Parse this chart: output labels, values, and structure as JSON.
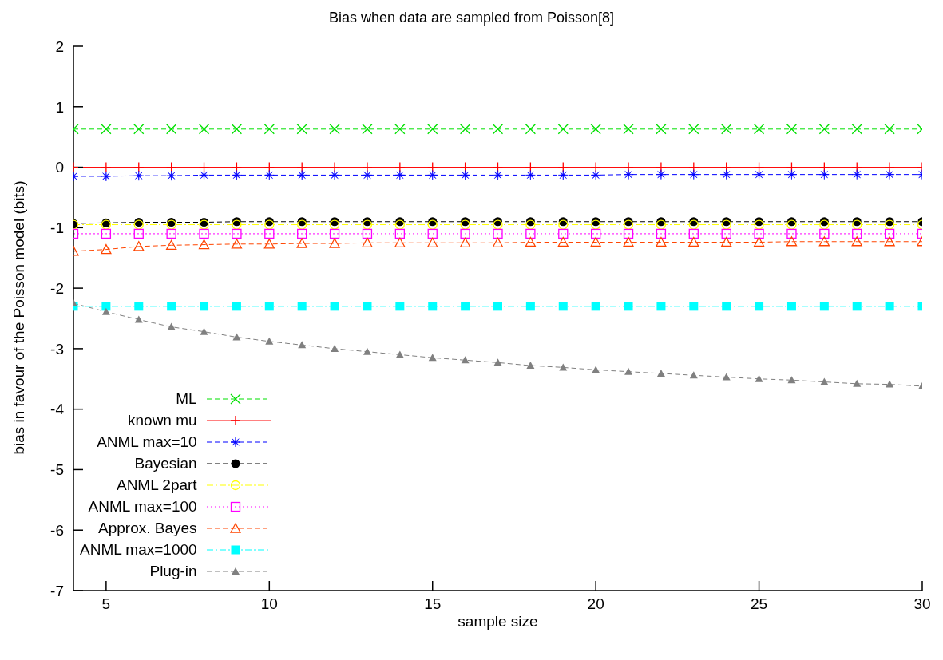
{
  "chart_data": {
    "type": "line",
    "title": "Bias when data are sampled from Poisson[8]",
    "xlabel": "sample size",
    "ylabel": "bias in favour of the Poisson model (bits)",
    "x": [
      4,
      5,
      6,
      7,
      8,
      9,
      10,
      11,
      12,
      13,
      14,
      15,
      16,
      17,
      18,
      19,
      20,
      21,
      22,
      23,
      24,
      25,
      26,
      27,
      28,
      29,
      30
    ],
    "xlim": [
      4,
      30
    ],
    "xticks": [
      5,
      10,
      15,
      20,
      25,
      30
    ],
    "ylim": [
      -7,
      2
    ],
    "yticks": [
      -7,
      -6,
      -5,
      -4,
      -3,
      -2,
      -1,
      0,
      1,
      2
    ],
    "legend": "bottom left",
    "series": [
      {
        "name": "ML",
        "color": "#00e000",
        "marker": "cross",
        "line_style": "dashed",
        "values": [
          0.63,
          0.63,
          0.63,
          0.63,
          0.63,
          0.63,
          0.63,
          0.63,
          0.63,
          0.63,
          0.63,
          0.63,
          0.63,
          0.63,
          0.63,
          0.63,
          0.63,
          0.63,
          0.63,
          0.63,
          0.63,
          0.63,
          0.63,
          0.63,
          0.63,
          0.63,
          0.63
        ]
      },
      {
        "name": "known mu",
        "color": "#ff0000",
        "marker": "plus",
        "line_style": "solid",
        "values": [
          0,
          0,
          0,
          0,
          0,
          0,
          0,
          0,
          0,
          0,
          0,
          0,
          0,
          0,
          0,
          0,
          0,
          0,
          0,
          0,
          0,
          0,
          0,
          0,
          0,
          0,
          0
        ]
      },
      {
        "name": "ANML max=10",
        "color": "#0000ff",
        "marker": "star",
        "line_style": "dashed",
        "values": [
          -0.15,
          -0.15,
          -0.14,
          -0.14,
          -0.13,
          -0.13,
          -0.13,
          -0.13,
          -0.13,
          -0.13,
          -0.13,
          -0.13,
          -0.13,
          -0.13,
          -0.13,
          -0.13,
          -0.13,
          -0.12,
          -0.12,
          -0.12,
          -0.12,
          -0.12,
          -0.12,
          -0.12,
          -0.12,
          -0.12,
          -0.12
        ]
      },
      {
        "name": "Bayesian",
        "color": "#000000",
        "marker": "circle",
        "line_style": "dashed",
        "values": [
          -0.93,
          -0.92,
          -0.91,
          -0.91,
          -0.91,
          -0.9,
          -0.9,
          -0.9,
          -0.9,
          -0.9,
          -0.9,
          -0.9,
          -0.9,
          -0.9,
          -0.9,
          -0.9,
          -0.9,
          -0.9,
          -0.9,
          -0.9,
          -0.9,
          -0.9,
          -0.9,
          -0.9,
          -0.9,
          -0.9,
          -0.9
        ]
      },
      {
        "name": "ANML 2part",
        "color": "#ffff00",
        "marker": "circle-open",
        "line_style": "dashdot",
        "values": [
          -0.95,
          -0.95,
          -0.95,
          -0.95,
          -0.95,
          -0.95,
          -0.95,
          -0.95,
          -0.95,
          -0.95,
          -0.95,
          -0.95,
          -0.95,
          -0.95,
          -0.95,
          -0.95,
          -0.95,
          -0.95,
          -0.95,
          -0.95,
          -0.95,
          -0.95,
          -0.95,
          -0.95,
          -0.95,
          -0.95,
          -0.95
        ]
      },
      {
        "name": "ANML max=100",
        "color": "#ff00ff",
        "marker": "square-open",
        "line_style": "dotted",
        "values": [
          -1.1,
          -1.1,
          -1.1,
          -1.1,
          -1.1,
          -1.1,
          -1.1,
          -1.1,
          -1.1,
          -1.1,
          -1.1,
          -1.1,
          -1.1,
          -1.1,
          -1.1,
          -1.1,
          -1.1,
          -1.1,
          -1.1,
          -1.1,
          -1.1,
          -1.1,
          -1.1,
          -1.1,
          -1.1,
          -1.1,
          -1.1
        ]
      },
      {
        "name": "Approx. Bayes",
        "color": "#ff4500",
        "marker": "triangle-open",
        "line_style": "dashed",
        "values": [
          -1.39,
          -1.36,
          -1.31,
          -1.29,
          -1.28,
          -1.27,
          -1.27,
          -1.26,
          -1.26,
          -1.25,
          -1.25,
          -1.25,
          -1.25,
          -1.25,
          -1.24,
          -1.24,
          -1.24,
          -1.24,
          -1.24,
          -1.24,
          -1.24,
          -1.24,
          -1.23,
          -1.23,
          -1.23,
          -1.23,
          -1.23
        ]
      },
      {
        "name": "ANML max=1000",
        "color": "#00ffff",
        "marker": "square",
        "line_style": "dashdot",
        "values": [
          -2.3,
          -2.3,
          -2.3,
          -2.3,
          -2.3,
          -2.3,
          -2.3,
          -2.3,
          -2.3,
          -2.3,
          -2.3,
          -2.3,
          -2.3,
          -2.3,
          -2.3,
          -2.3,
          -2.3,
          -2.3,
          -2.3,
          -2.3,
          -2.3,
          -2.3,
          -2.3,
          -2.3,
          -2.3,
          -2.3,
          -2.3
        ]
      },
      {
        "name": "Plug-in",
        "color": "#808080",
        "marker": "triangle",
        "line_style": "dashed",
        "values": [
          -2.25,
          -2.39,
          -2.52,
          -2.64,
          -2.72,
          -2.81,
          -2.88,
          -2.94,
          -3.0,
          -3.05,
          -3.1,
          -3.15,
          -3.19,
          -3.23,
          -3.28,
          -3.31,
          -3.35,
          -3.38,
          -3.41,
          -3.44,
          -3.47,
          -3.5,
          -3.52,
          -3.55,
          -3.58,
          -3.59,
          -3.62
        ]
      }
    ]
  }
}
